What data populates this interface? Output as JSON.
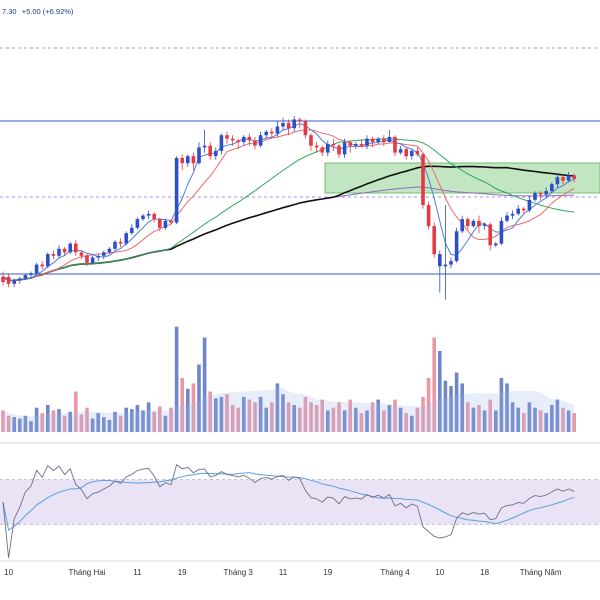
{
  "header": {
    "price_text": "7.30",
    "change_text": "+5.00 (+6.92%)"
  },
  "colors": {
    "up": "#2e4fc7",
    "down": "#e53946",
    "up_vol": "#6f86c9",
    "down_vol": "#ec97a6",
    "ma_fast": "#4f7fdc",
    "ma_mid": "#ef6b6b",
    "ma_slow": "#35a35a",
    "ma_long": "#111111",
    "ma_purple": "#8f6cc4",
    "hline": "#2d5fd0",
    "dashed": "#7b73d8",
    "zone_fill": "#8fd08f",
    "zone_edge": "#57b357",
    "rsi": "#6f6f86",
    "rsi_ma": "#5aa0dc",
    "rsi_band": "#e9e3f5"
  },
  "chart_data": {
    "type": "candlestick",
    "price_range": [
      0,
      100
    ],
    "x_ticks": [
      {
        "label": "10",
        "index": 1
      },
      {
        "label": "Tháng Hai",
        "index": 15
      },
      {
        "label": "11",
        "index": 24
      },
      {
        "label": "19",
        "index": 32
      },
      {
        "label": "Tháng 3",
        "index": 42
      },
      {
        "label": "11",
        "index": 50
      },
      {
        "label": "19",
        "index": 58
      },
      {
        "label": "Tháng 4",
        "index": 70
      },
      {
        "label": "10",
        "index": 78
      },
      {
        "label": "18",
        "index": 86
      },
      {
        "label": "Tháng Năm",
        "index": 96
      }
    ],
    "candles": [
      [
        16,
        19,
        14,
        22,
        "d",
        16
      ],
      [
        19,
        15,
        13,
        21,
        "d",
        12
      ],
      [
        15,
        17,
        13,
        18,
        "u",
        11
      ],
      [
        17,
        18,
        15,
        19,
        "u",
        10
      ],
      [
        18,
        20,
        17,
        21,
        "u",
        12
      ],
      [
        20,
        21,
        18,
        22,
        "u",
        8
      ],
      [
        21,
        26,
        20,
        27,
        "u",
        18
      ],
      [
        26,
        25,
        23,
        28,
        "d",
        14
      ],
      [
        25,
        32,
        24,
        33,
        "u",
        20
      ],
      [
        32,
        31,
        29,
        34,
        "d",
        16
      ],
      [
        31,
        35,
        30,
        37,
        "u",
        17
      ],
      [
        35,
        33,
        31,
        36,
        "d",
        12
      ],
      [
        33,
        38,
        32,
        39,
        "u",
        15
      ],
      [
        38,
        33,
        31,
        40,
        "d",
        30
      ],
      [
        33,
        31,
        29,
        34,
        "d",
        13
      ],
      [
        31,
        27,
        25,
        32,
        "d",
        18
      ],
      [
        27,
        30,
        26,
        31,
        "u",
        10
      ],
      [
        30,
        31,
        28,
        32,
        "u",
        14
      ],
      [
        31,
        33,
        29,
        34,
        "u",
        11
      ],
      [
        33,
        35,
        32,
        36,
        "u",
        9
      ],
      [
        35,
        39,
        34,
        40,
        "u",
        15
      ],
      [
        39,
        38,
        36,
        41,
        "d",
        12
      ],
      [
        38,
        44,
        37,
        45,
        "u",
        18
      ],
      [
        44,
        47,
        43,
        49,
        "u",
        17
      ],
      [
        47,
        52,
        46,
        53,
        "u",
        20
      ],
      [
        52,
        54,
        51,
        55,
        "u",
        16
      ],
      [
        54,
        55,
        52,
        57,
        "u",
        22
      ],
      [
        55,
        52,
        50,
        56,
        "d",
        15
      ],
      [
        52,
        47,
        45,
        53,
        "d",
        19
      ],
      [
        47,
        51,
        46,
        52,
        "u",
        12
      ],
      [
        51,
        50,
        49,
        52,
        "d",
        18
      ],
      [
        50,
        87,
        49,
        88,
        "u",
        78
      ],
      [
        87,
        84,
        80,
        89,
        "d",
        40
      ],
      [
        84,
        88,
        82,
        89,
        "u",
        32
      ],
      [
        88,
        84,
        80,
        90,
        "d",
        36
      ],
      [
        84,
        93,
        83,
        96,
        "u",
        50
      ],
      [
        93,
        94,
        90,
        103,
        "u",
        70
      ],
      [
        94,
        88,
        86,
        96,
        "d",
        30
      ],
      [
        88,
        91,
        86,
        93,
        "u",
        25
      ],
      [
        91,
        100,
        89,
        101,
        "u",
        26
      ],
      [
        100,
        98,
        95,
        102,
        "d",
        28
      ],
      [
        98,
        97,
        94,
        100,
        "d",
        20
      ],
      [
        97,
        96,
        92,
        98,
        "d",
        18
      ],
      [
        96,
        99,
        94,
        100,
        "u",
        26
      ],
      [
        99,
        97,
        94,
        101,
        "d",
        24
      ],
      [
        97,
        94,
        92,
        99,
        "d",
        22
      ],
      [
        94,
        100,
        93,
        102,
        "u",
        26
      ],
      [
        100,
        102,
        98,
        103,
        "u",
        18
      ],
      [
        102,
        101,
        99,
        104,
        "d",
        22
      ],
      [
        101,
        105,
        99,
        108,
        "u",
        36
      ],
      [
        105,
        107,
        103,
        110,
        "u",
        28
      ],
      [
        107,
        104,
        100,
        109,
        "d",
        22
      ],
      [
        104,
        109,
        102,
        111,
        "u",
        20
      ],
      [
        109,
        108,
        104,
        110,
        "d",
        18
      ],
      [
        108,
        100,
        98,
        109,
        "d",
        26
      ],
      [
        100,
        94,
        91,
        101,
        "d",
        22
      ],
      [
        94,
        93,
        90,
        96,
        "d",
        20
      ],
      [
        93,
        90,
        88,
        94,
        "d",
        24
      ],
      [
        90,
        95,
        88,
        97,
        "u",
        16
      ],
      [
        95,
        94,
        91,
        98,
        "d",
        18
      ],
      [
        94,
        89,
        87,
        95,
        "d",
        22
      ],
      [
        89,
        96,
        87,
        98,
        "u",
        16
      ],
      [
        96,
        94,
        90,
        97,
        "d",
        24
      ],
      [
        94,
        95,
        92,
        96,
        "u",
        18
      ],
      [
        95,
        94,
        93,
        97,
        "d",
        14
      ],
      [
        94,
        98,
        92,
        100,
        "u",
        16
      ],
      [
        98,
        96,
        93,
        99,
        "d",
        22
      ],
      [
        96,
        98,
        95,
        99,
        "u",
        24
      ],
      [
        98,
        96,
        94,
        100,
        "d",
        16
      ],
      [
        96,
        99,
        97,
        103,
        "u",
        20
      ],
      [
        99,
        90,
        88,
        100,
        "d",
        24
      ],
      [
        90,
        92,
        89,
        94,
        "u",
        18
      ],
      [
        92,
        88,
        86,
        93,
        "d",
        14
      ],
      [
        88,
        91,
        86,
        92,
        "u",
        12
      ],
      [
        91,
        89,
        88,
        93,
        "d",
        18
      ],
      [
        89,
        60,
        58,
        90,
        "d",
        26
      ],
      [
        60,
        48,
        46,
        62,
        "d",
        40
      ],
      [
        48,
        32,
        30,
        50,
        "d",
        70
      ],
      [
        32,
        25,
        10,
        34,
        "u",
        60
      ],
      [
        25,
        26,
        6,
        60,
        "u",
        38
      ],
      [
        26,
        28,
        24,
        30,
        "u",
        34
      ],
      [
        28,
        45,
        27,
        47,
        "u",
        44
      ],
      [
        45,
        52,
        44,
        54,
        "u",
        36
      ],
      [
        52,
        48,
        46,
        53,
        "d",
        22
      ],
      [
        48,
        51,
        47,
        52,
        "u",
        18
      ],
      [
        51,
        48,
        44,
        54,
        "d",
        20
      ],
      [
        48,
        49,
        46,
        50,
        "u",
        16
      ],
      [
        49,
        37,
        34,
        50,
        "d",
        24
      ],
      [
        37,
        38,
        36,
        39,
        "u",
        16
      ],
      [
        38,
        51,
        37,
        53,
        "u",
        40
      ],
      [
        51,
        54,
        50,
        56,
        "u",
        36
      ],
      [
        54,
        55,
        52,
        57,
        "u",
        22
      ],
      [
        55,
        58,
        54,
        60,
        "u",
        18
      ],
      [
        58,
        57,
        55,
        59,
        "d",
        14
      ],
      [
        57,
        63,
        56,
        65,
        "u",
        22
      ],
      [
        63,
        67,
        62,
        68,
        "u",
        18
      ],
      [
        67,
        66,
        63,
        68,
        "d",
        16
      ],
      [
        66,
        68,
        64,
        70,
        "u",
        14
      ],
      [
        68,
        72,
        67,
        73,
        "u",
        20
      ],
      [
        72,
        76,
        70,
        78,
        "u",
        24
      ],
      [
        76,
        74,
        72,
        78,
        "d",
        18
      ],
      [
        74,
        77,
        73,
        79,
        "u",
        16
      ],
      [
        77,
        75,
        73,
        78,
        "d",
        14
      ]
    ],
    "rsi_range": [
      0,
      100
    ],
    "rsi_band": [
      30,
      70
    ]
  }
}
